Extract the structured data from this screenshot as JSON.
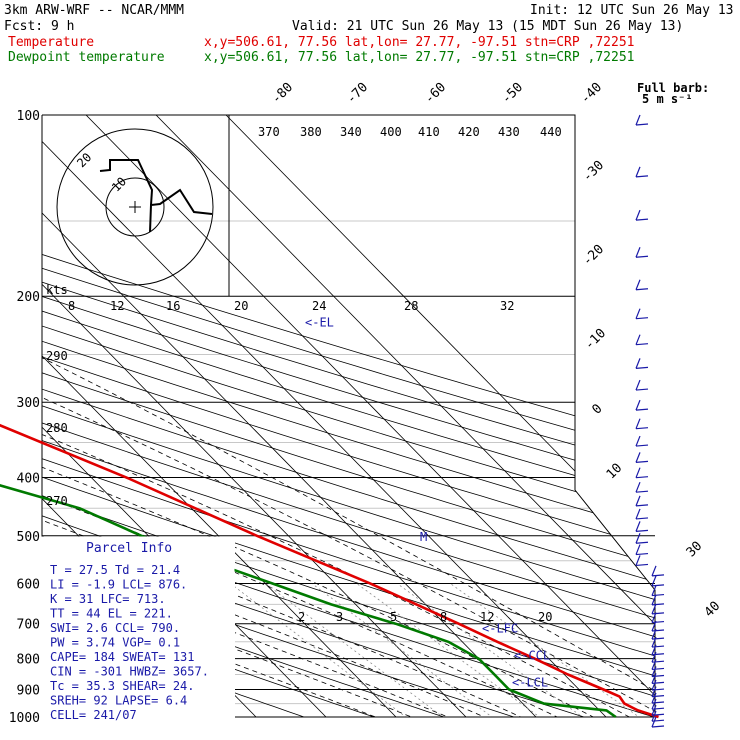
{
  "header": {
    "model": "3km ARW-WRF -- NCAR/MMM",
    "init": "Init: 12 UTC Sun 26 May 13",
    "fcst": "Fcst:     9 h",
    "valid": "Valid: 21 UTC Sun 26 May 13 (15 MDT Sun 26 May 13)",
    "temp_label": "Temperature",
    "temp_info": "x,y=506.61, 77.56   lat,lon= 27.77, -97.51  stn=CRP ,72251",
    "dew_label": "Dewpoint temperature",
    "dew_info": "x,y=506.61, 77.56   lat,lon= 27.77, -97.51  stn=CRP ,72251"
  },
  "barb_legend": {
    "title": "Full barb:",
    "value": "5 m s⁻¹"
  },
  "colors": {
    "temperature": "#e00000",
    "dewpoint": "#007a00",
    "parcel": "#1a1aa8",
    "text": "#000000"
  },
  "chart_data": {
    "type": "line",
    "title": "",
    "y_axis": {
      "quantity": "pressure",
      "scale": "log",
      "range": [
        1000,
        100
      ],
      "ticks": [
        100,
        200,
        300,
        400,
        500,
        600,
        700,
        800,
        900,
        1000
      ]
    },
    "isotherm_labels": [
      -80,
      -70,
      -60,
      -50,
      -40,
      -30,
      -20,
      -10,
      0,
      10,
      30,
      40
    ],
    "theta_labels": [
      370,
      380,
      340,
      400,
      410,
      420,
      430,
      440
    ],
    "theta_left_labels": [
      290,
      280,
      270
    ],
    "mixing_ratio_labels_upper": [
      8,
      12,
      16,
      20,
      24,
      28,
      32
    ],
    "mixing_ratio_labels_lower": [
      2,
      3,
      5,
      8,
      12,
      20
    ],
    "kts_label": "kts",
    "series": [
      {
        "name": "Temperature",
        "points": [
          {
            "p": 1000,
            "t": 27.5
          },
          {
            "p": 975,
            "t": 25.5
          },
          {
            "p": 950,
            "t": 24.5
          },
          {
            "p": 925,
            "t": 24.8
          },
          {
            "p": 900,
            "t": 23.5
          },
          {
            "p": 850,
            "t": 20.5
          },
          {
            "p": 800,
            "t": 18.0
          },
          {
            "p": 750,
            "t": 15.0
          },
          {
            "p": 700,
            "t": 12.0
          },
          {
            "p": 600,
            "t": 5.0
          },
          {
            "p": 500,
            "t": -4.5
          },
          {
            "p": 400,
            "t": -15.0
          },
          {
            "p": 300,
            "t": -30.5
          },
          {
            "p": 250,
            "t": -40.0
          },
          {
            "p": 200,
            "t": -51.0
          },
          {
            "p": 175,
            "t": -58.0
          },
          {
            "p": 150,
            "t": -64.0
          },
          {
            "p": 130,
            "t": -65.0
          },
          {
            "p": 115,
            "t": -64.0
          },
          {
            "p": 100,
            "t": -63.0
          }
        ]
      },
      {
        "name": "Dewpoint temperature",
        "points": [
          {
            "p": 1000,
            "t": 21.4
          },
          {
            "p": 975,
            "t": 21.0
          },
          {
            "p": 950,
            "t": 13.0
          },
          {
            "p": 900,
            "t": 10.0
          },
          {
            "p": 850,
            "t": 10.0
          },
          {
            "p": 800,
            "t": 10.0
          },
          {
            "p": 750,
            "t": 8.0
          },
          {
            "p": 700,
            "t": 3.0
          },
          {
            "p": 650,
            "t": -3.5
          },
          {
            "p": 600,
            "t": -9.0
          },
          {
            "p": 550,
            "t": -15.0
          },
          {
            "p": 500,
            "t": -21.0
          },
          {
            "p": 450,
            "t": -26.0
          },
          {
            "p": 400,
            "t": -37.0
          },
          {
            "p": 370,
            "t": -43.0
          },
          {
            "p": 345,
            "t": -41.0
          },
          {
            "p": 320,
            "t": -40.5
          },
          {
            "p": 300,
            "t": -45.0
          },
          {
            "p": 280,
            "t": -46.0
          },
          {
            "p": 250,
            "t": -48.0
          },
          {
            "p": 220,
            "t": -51.0
          },
          {
            "p": 200,
            "t": -56.5
          },
          {
            "p": 175,
            "t": -64.0
          },
          {
            "p": 150,
            "t": -72.0
          },
          {
            "p": 125,
            "t": -78.0
          },
          {
            "p": 100,
            "t": -82.0
          }
        ]
      }
    ],
    "levels": [
      {
        "label": "<-EL",
        "p": 221
      },
      {
        "label": "<-LFC",
        "p": 713
      },
      {
        "label": "<-CCL",
        "p": 790
      },
      {
        "label": "<-LCL",
        "p": 876
      }
    ]
  },
  "parcel_info": {
    "title": "Parcel Info",
    "rows": [
      "T  =    27.5  Td =  21.4",
      "LI =    -1.9  LCL=  876.",
      "K  =     31  LFC=  713.",
      "TT =     44  EL =  221.",
      "SWI=    2.6  CCL=  790.",
      "PW =   3.74  VGP=   0.1",
      "CAPE=   184  SWEAT=  131",
      "CIN =  -301  HWBZ= 3657.",
      "Tc =   35.3  SHEAR=  24.",
      "SREH=    92  LAPSE=  6.4",
      "CELL= 241/07"
    ]
  },
  "hodograph": {
    "ring_labels": [
      "20",
      "10"
    ]
  }
}
